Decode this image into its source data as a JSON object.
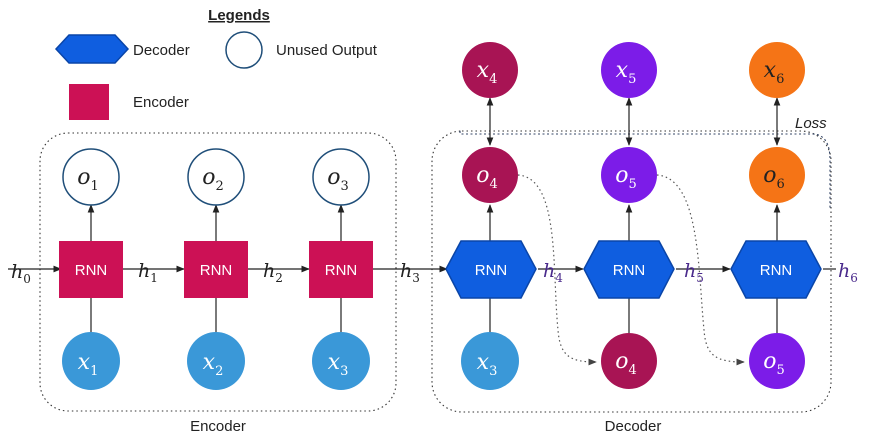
{
  "legend": {
    "title": "Legends",
    "decoder_label": "Decoder",
    "unused_label": "Unused Output",
    "encoder_label": "Encoder"
  },
  "colors": {
    "encoder_rnn": "#cc1155",
    "decoder_rnn": "#0f5ee0",
    "decoder_rnn_stroke": "#0a45a8",
    "input_blue": "#3a98d8",
    "crimson": "#a81454",
    "purple": "#7c1ce8",
    "orange": "#f57416",
    "unused_stroke": "#1f4e79",
    "hidden_purple": "#4a2a8c"
  },
  "rnn_label": "RNN",
  "encoder": {
    "caption": "Encoder",
    "h0": {
      "v": "h",
      "s": "0"
    },
    "outputs": [
      {
        "v": "o",
        "s": "1"
      },
      {
        "v": "o",
        "s": "2"
      },
      {
        "v": "o",
        "s": "3"
      }
    ],
    "hidden": [
      {
        "v": "h",
        "s": "1"
      },
      {
        "v": "h",
        "s": "2"
      },
      {
        "v": "h",
        "s": "3"
      }
    ],
    "inputs": [
      {
        "v": "x",
        "s": "1"
      },
      {
        "v": "x",
        "s": "2"
      },
      {
        "v": "x",
        "s": "3"
      }
    ]
  },
  "decoder": {
    "caption": "Decoder",
    "loss_label": "Loss",
    "targets": [
      {
        "v": "x",
        "s": "4"
      },
      {
        "v": "x",
        "s": "5"
      },
      {
        "v": "x",
        "s": "6"
      }
    ],
    "outputs": [
      {
        "v": "o",
        "s": "4"
      },
      {
        "v": "o",
        "s": "5"
      },
      {
        "v": "o",
        "s": "6"
      }
    ],
    "hidden": [
      {
        "v": "h",
        "s": "4"
      },
      {
        "v": "h",
        "s": "5"
      },
      {
        "v": "h",
        "s": "6"
      }
    ],
    "first_input": {
      "v": "x",
      "s": "3"
    },
    "fed_inputs": [
      {
        "v": "o",
        "s": "4"
      },
      {
        "v": "o",
        "s": "5"
      }
    ]
  }
}
